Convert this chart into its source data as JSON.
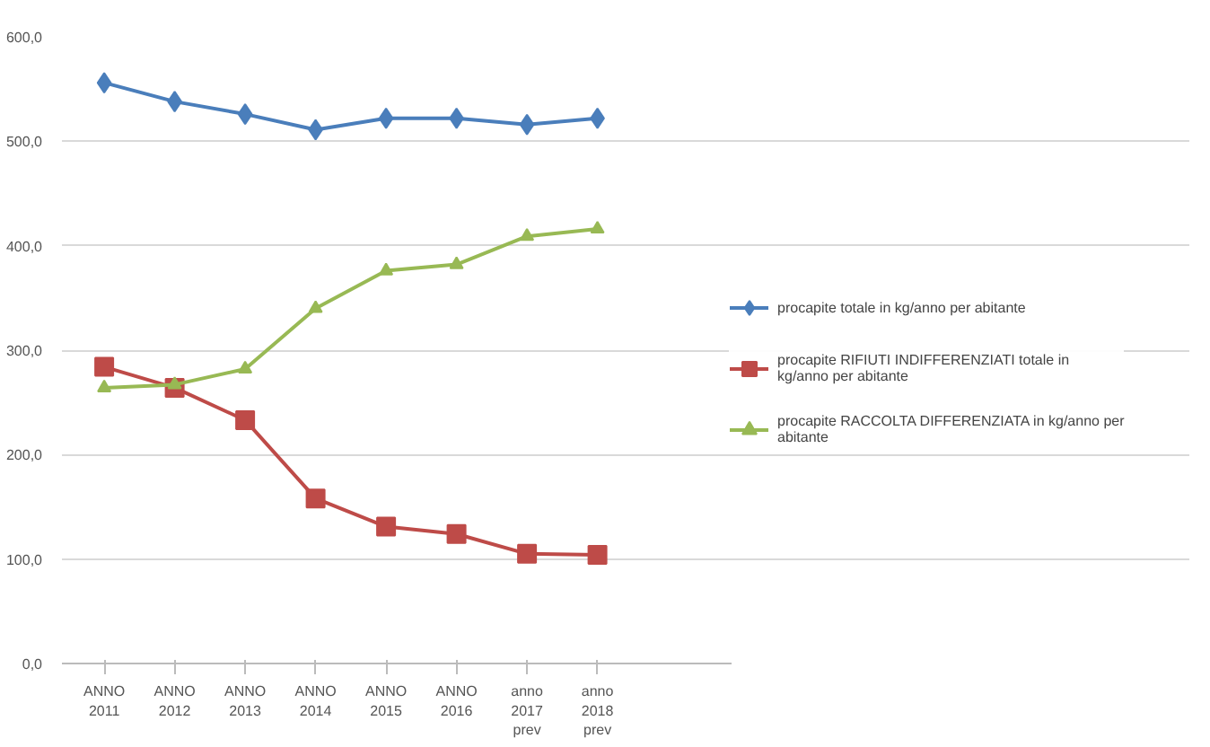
{
  "chart_data": {
    "type": "line",
    "categories": [
      "ANNO 2011",
      "ANNO 2012",
      "ANNO 2013",
      "ANNO 2014",
      "ANNO 2015",
      "ANNO 2016",
      "anno 2017 prev",
      "anno 2018 prev"
    ],
    "series": [
      {
        "name": "procapite totale in kg/anno per abitante",
        "color": "#4a7ebb",
        "marker": "diamond",
        "values": [
          556,
          538,
          526,
          511,
          522,
          522,
          516,
          522
        ]
      },
      {
        "name": "procapite RIFIUTI INDIFFERENZIATI totale in kg/anno per abitante",
        "color": "#be4b48",
        "marker": "square",
        "values": [
          284,
          264,
          233,
          158,
          131,
          124,
          105,
          104
        ]
      },
      {
        "name": "procapite RACCOLTA DIFFERENZIATA in kg/anno per abitante",
        "color": "#98b954",
        "marker": "triangle",
        "values": [
          264,
          267,
          282,
          340,
          376,
          382,
          409,
          416
        ]
      }
    ],
    "ylim": [
      0,
      600
    ],
    "yticks": [
      {
        "value": 0,
        "label": "0,0"
      },
      {
        "value": 100,
        "label": "100,0"
      },
      {
        "value": 200,
        "label": "200,0"
      },
      {
        "value": 300,
        "label": "300,0"
      },
      {
        "value": 400,
        "label": "400,0"
      },
      {
        "value": 500,
        "label": "500,0"
      },
      {
        "value": 600,
        "label": "600,0"
      }
    ],
    "grid": "y",
    "legend": "right",
    "line_style": "solid"
  }
}
